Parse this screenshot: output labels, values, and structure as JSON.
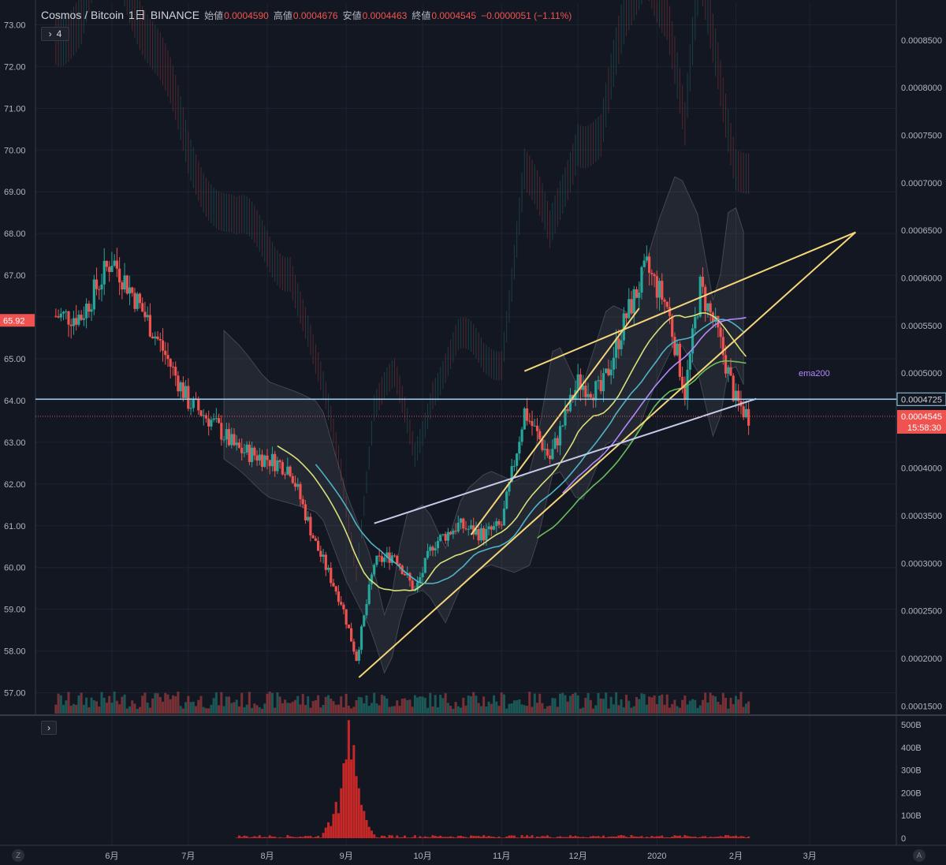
{
  "header": {
    "symbol": "Cosmos / Bitcoin",
    "interval": "1日",
    "exchange": "BINANCE",
    "open_label": "始値",
    "open": "0.0004590",
    "high_label": "高値",
    "high": "0.0004676",
    "low_label": "安値",
    "low": "0.0004463",
    "close_label": "終値",
    "close": "0.0004545",
    "change": "−0.0000051 (−1.11%)"
  },
  "controls": {
    "collapse_count": "4",
    "collapse_glyph": "›",
    "pane2_glyph": "›",
    "corner_left": "Z",
    "corner_right": "A"
  },
  "chart_data": {
    "type": "candlestick",
    "title": "",
    "x_ticks": [
      "6月",
      "7月",
      "8月",
      "9月",
      "10月",
      "11月",
      "12月",
      "2020",
      "2月",
      "3月"
    ],
    "left_axis": {
      "ticks": [
        "73.00",
        "72.00",
        "71.00",
        "70.00",
        "69.00",
        "68.00",
        "67.00",
        "66.00",
        "65.00",
        "64.00",
        "63.00",
        "62.00",
        "61.00",
        "60.00",
        "59.00",
        "58.00",
        "57.00"
      ],
      "range": [
        56.5,
        73.5
      ],
      "current_label": "65.92"
    },
    "right_axis": {
      "ticks": [
        "0.0008500",
        "0.0008000",
        "0.0007500",
        "0.0007000",
        "0.0006500",
        "0.0006000",
        "0.0005500",
        "0.0005000",
        "0.0004500",
        "0.0004000",
        "0.0003500",
        "0.0003000",
        "0.0002500",
        "0.0002000",
        "0.0001500"
      ],
      "range": [
        0.000142,
        0.000888
      ]
    },
    "price_labels": {
      "horizontal_line": "0.0004725",
      "last": "0.0004545",
      "countdown": "15:58:30"
    },
    "series_labels": {
      "ema200": "ema200"
    },
    "volume_axis": {
      "ticks": [
        "500B",
        "400B",
        "300B",
        "200B",
        "100B",
        "0"
      ]
    },
    "colors": {
      "up": "#26a69a",
      "down": "#ef5350",
      "background": "#131722",
      "trend_line": "#f5d67a",
      "horizontal_line": "#9bd4f0",
      "ema200": "#b388ff",
      "ema_cyan": "#4fb3c8",
      "ema_green": "#6abf5a",
      "ema_yellow": "#d8e07a",
      "volume": "#c62828"
    },
    "main_series_approx_btc": [
      [
        "2019-05-20",
        0.00056
      ],
      [
        "2019-06-01",
        0.00062
      ],
      [
        "2019-06-10",
        0.00058
      ],
      [
        "2019-06-20",
        0.00053
      ],
      [
        "2019-07-01",
        0.00047
      ],
      [
        "2019-07-10",
        0.00045
      ],
      [
        "2019-07-20",
        0.00042
      ],
      [
        "2019-08-01",
        0.00041
      ],
      [
        "2019-08-10",
        0.0004
      ],
      [
        "2019-08-20",
        0.00032
      ],
      [
        "2019-08-30",
        0.00026
      ],
      [
        "2019-09-05",
        0.0002
      ],
      [
        "2019-09-12",
        0.0003
      ],
      [
        "2019-09-20",
        0.00031
      ],
      [
        "2019-09-28",
        0.00027
      ],
      [
        "2019-10-05",
        0.00032
      ],
      [
        "2019-10-15",
        0.00034
      ],
      [
        "2019-10-25",
        0.00033
      ],
      [
        "2019-11-01",
        0.00034
      ],
      [
        "2019-11-10",
        0.00046
      ],
      [
        "2019-11-20",
        0.00041
      ],
      [
        "2019-12-01",
        0.00049
      ],
      [
        "2019-12-10",
        0.00048
      ],
      [
        "2019-12-20",
        0.00056
      ],
      [
        "2019-12-28",
        0.00061
      ],
      [
        "2020-01-05",
        0.00057
      ],
      [
        "2020-01-12",
        0.00048
      ],
      [
        "2020-01-18",
        0.00059
      ],
      [
        "2020-01-25",
        0.00054
      ],
      [
        "2020-02-01",
        0.00047
      ],
      [
        "2020-02-06",
        0.0004545
      ]
    ]
  }
}
